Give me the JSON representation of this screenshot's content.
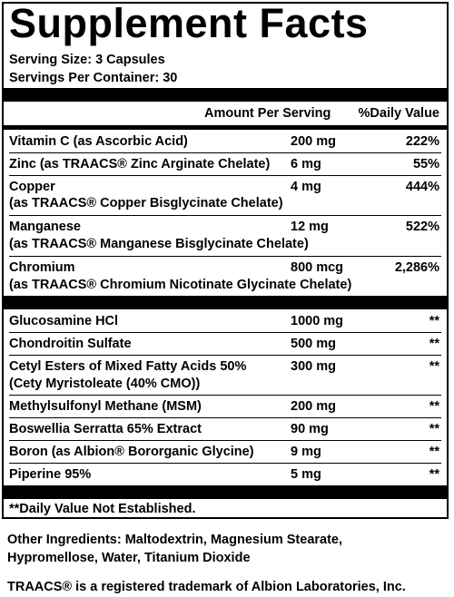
{
  "title": "Supplement Facts",
  "serving_size": "Serving Size: 3 Capsules",
  "servings_per_container": "Servings Per Container: 30",
  "header": {
    "amount": "Amount Per Serving",
    "dv": "%Daily Value"
  },
  "vitamins": [
    {
      "name": "Vitamin C (as Ascorbic Acid)",
      "sub": "",
      "amount": "200 mg",
      "dv": "222%"
    },
    {
      "name": "Zinc (as TRAACS® Zinc Arginate Chelate)",
      "sub": "",
      "amount": "6 mg",
      "dv": "55%"
    },
    {
      "name": "Copper",
      "sub": "(as TRAACS® Copper Bisglycinate Chelate)",
      "amount": "4 mg",
      "dv": "444%"
    },
    {
      "name": "Manganese",
      "sub": "(as TRAACS® Manganese Bisglycinate Chelate)",
      "amount": "12 mg",
      "dv": "522%"
    },
    {
      "name": "Chromium",
      "sub": "(as TRAACS® Chromium Nicotinate Glycinate Chelate)",
      "amount": "800 mcg",
      "dv": "2,286%"
    }
  ],
  "others": [
    {
      "name": "Glucosamine HCl",
      "sub": "",
      "amount": "1000 mg",
      "dv": "**"
    },
    {
      "name": "Chondroitin Sulfate",
      "sub": "",
      "amount": "500 mg",
      "dv": "**"
    },
    {
      "name": "Cetyl Esters of Mixed Fatty Acids 50%",
      "sub": "(Cety Myristoleate (40% CMO))",
      "amount": "300 mg",
      "dv": "**"
    },
    {
      "name": "Methylsulfonyl Methane (MSM)",
      "sub": "",
      "amount": "200 mg",
      "dv": "**"
    },
    {
      "name": "Boswellia Serratta 65% Extract",
      "sub": "",
      "amount": "90 mg",
      "dv": "**"
    },
    {
      "name": "Boron (as Albion® Bororganic Glycine)",
      "sub": "",
      "amount": "9 mg",
      "dv": "**"
    },
    {
      "name": "Piperine 95%",
      "sub": "",
      "amount": "5 mg",
      "dv": "**"
    }
  ],
  "footnote": "**Daily Value Not Established.",
  "other_ingredients": {
    "line1": "Other Ingredients: Maltodextrin, Magnesium Stearate,",
    "line2": "Hypromellose, Water, Titanium Dioxide"
  },
  "trademark": "TRAACS® is a registered trademark of Albion Laboratories, Inc."
}
